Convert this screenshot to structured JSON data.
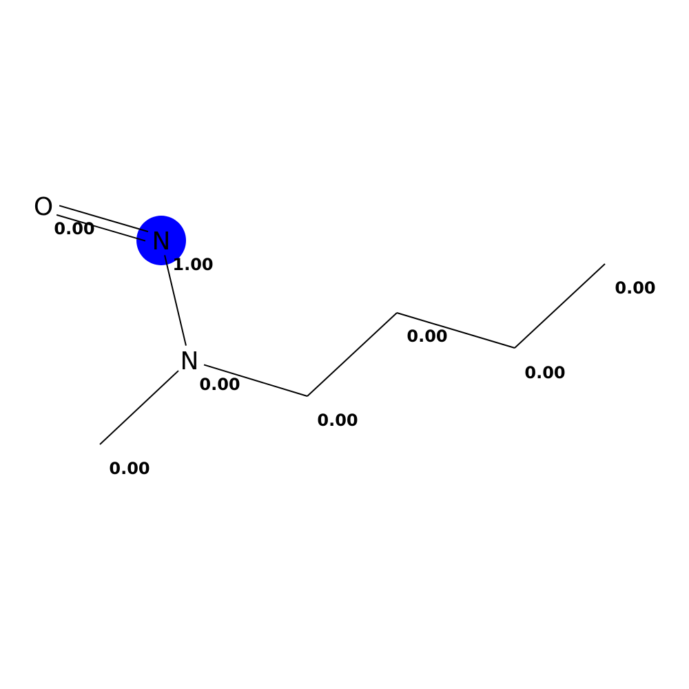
{
  "highlight_color": "#0000ff",
  "atoms": [
    {
      "id": "o1",
      "element": "O",
      "value": "0.00",
      "highlighted": false
    },
    {
      "id": "n1",
      "element": "N",
      "value": "1.00",
      "highlighted": true
    },
    {
      "id": "n2",
      "element": "N",
      "value": "0.00",
      "highlighted": false
    },
    {
      "id": "c-methyl",
      "element": "",
      "value": "0.00",
      "highlighted": false
    },
    {
      "id": "c1",
      "element": "",
      "value": "0.00",
      "highlighted": false
    },
    {
      "id": "c2",
      "element": "",
      "value": "0.00",
      "highlighted": false
    },
    {
      "id": "c3",
      "element": "",
      "value": "0.00",
      "highlighted": false
    },
    {
      "id": "c4",
      "element": "",
      "value": "0.00",
      "highlighted": false
    }
  ],
  "bonds": [
    {
      "from": "o1",
      "to": "n1",
      "order": 2
    },
    {
      "from": "n1",
      "to": "n2",
      "order": 1
    },
    {
      "from": "n2",
      "to": "c-methyl",
      "order": 1
    },
    {
      "from": "n2",
      "to": "c1",
      "order": 1
    },
    {
      "from": "c1",
      "to": "c2",
      "order": 1
    },
    {
      "from": "c2",
      "to": "c3",
      "order": 1
    },
    {
      "from": "c3",
      "to": "c4",
      "order": 1
    }
  ]
}
